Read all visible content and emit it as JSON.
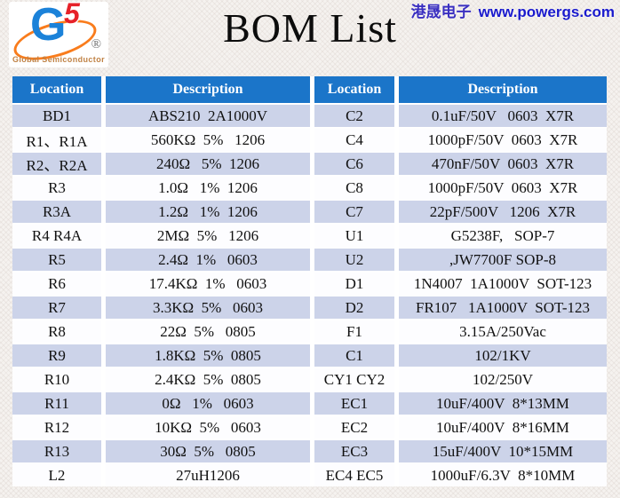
{
  "page": {
    "title": "BOM List"
  },
  "brand": {
    "logo_g": "G",
    "logo_5": "5",
    "registered": "®",
    "name": "Global Semiconductor"
  },
  "tagline": {
    "cn": "港晟电子",
    "url": "www.powergs.com"
  },
  "colors": {
    "header_bg": "#1b75c9",
    "row_alt": "#ccd3e9",
    "row_plain": "#fdfdff",
    "logo_blue": "#1b82d9",
    "logo_red": "#e62129",
    "logo_orange": "#f97c1c",
    "link_blue": "#1a1acd"
  },
  "table": {
    "headers": [
      "Location",
      "Description",
      "Location",
      "Description"
    ],
    "rows": [
      {
        "loc1": "BD1",
        "desc1": "ABS210  2A1000V",
        "loc2": "C2",
        "desc2": "0.1uF/50V   0603  X7R"
      },
      {
        "loc1": "R1、R1A",
        "desc1": "560KΩ  5%   1206",
        "loc2": "C4",
        "desc2": "1000pF/50V  0603  X7R"
      },
      {
        "loc1": "R2、R2A",
        "desc1": "240Ω   5%  1206",
        "loc2": "C6",
        "desc2": "470nF/50V  0603  X7R"
      },
      {
        "loc1": "R3",
        "desc1": "1.0Ω   1%  1206",
        "loc2": "C8",
        "desc2": "1000pF/50V  0603  X7R"
      },
      {
        "loc1": "R3A",
        "desc1": "1.2Ω   1%  1206",
        "loc2": "C7",
        "desc2": "22pF/500V   1206  X7R"
      },
      {
        "loc1": "R4 R4A",
        "desc1": "2MΩ  5%   1206",
        "loc2": "U1",
        "desc2": "G5238F,   SOP-7"
      },
      {
        "loc1": "R5",
        "desc1": "2.4Ω  1%   0603",
        "loc2": "U2",
        "desc2": ",JW7700F SOP-8"
      },
      {
        "loc1": "R6",
        "desc1": "17.4KΩ  1%   0603",
        "loc2": "D1",
        "desc2": "1N4007  1A1000V  SOT-123"
      },
      {
        "loc1": "R7",
        "desc1": "3.3KΩ  5%   0603",
        "loc2": "D2",
        "desc2": "FR107   1A1000V  SOT-123"
      },
      {
        "loc1": "R8",
        "desc1": "22Ω  5%   0805",
        "loc2": "F1",
        "desc2": "3.15A/250Vac"
      },
      {
        "loc1": "R9",
        "desc1": "1.8KΩ  5%  0805",
        "loc2": "C1",
        "desc2": "102/1KV"
      },
      {
        "loc1": "R10",
        "desc1": "2.4KΩ  5%  0805",
        "loc2": "CY1 CY2",
        "desc2": "102/250V"
      },
      {
        "loc1": "R11",
        "desc1": "0Ω   1%   0603",
        "loc2": "EC1",
        "desc2": "10uF/400V  8*13MM"
      },
      {
        "loc1": "R12",
        "desc1": "10KΩ  5%   0603",
        "loc2": "EC2",
        "desc2": "10uF/400V  8*16MM"
      },
      {
        "loc1": "R13",
        "desc1": "30Ω  5%   0805",
        "loc2": "EC3",
        "desc2": "15uF/400V  10*15MM"
      },
      {
        "loc1": "L2",
        "desc1": "27uH1206",
        "loc2": "EC4 EC5",
        "desc2": "1000uF/6.3V  8*10MM"
      }
    ]
  }
}
